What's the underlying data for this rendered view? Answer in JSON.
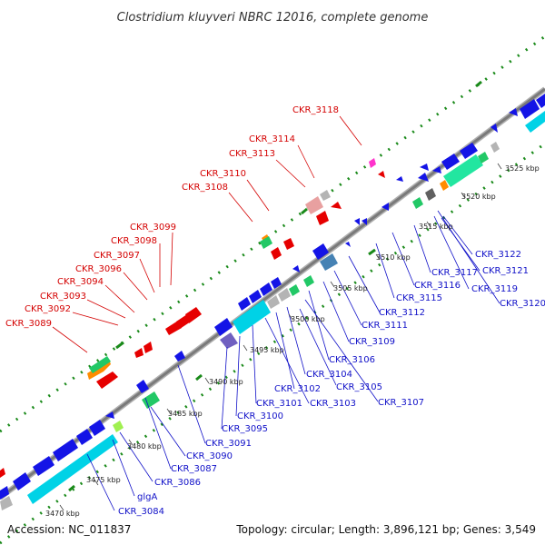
{
  "title": "Clostridium kluyveri NBRC 12016, complete genome",
  "footer": {
    "accession": "Accession: NC_011837",
    "summary": "Topology: circular; Length: 3,896,121 bp; Genes: 3,549"
  },
  "colors": {
    "backbone": "#808080",
    "forward_label": "#d40000",
    "reverse_label": "#1010c8",
    "gc_dots": "#1a8a1a",
    "blue_gene": "#1414e6",
    "cyan_gene": "#00d2e6",
    "green_gene": "#22c866",
    "orange_gene": "#ff8c00",
    "red_gene": "#e60000",
    "pink_gene": "#e8a0a0",
    "magenta_gene": "#ff33cc",
    "grey_gene": "#b4b4b4",
    "steel_gene": "#4682b4",
    "purple_gene": "#7060c0",
    "lime_gene": "#a0f050"
  },
  "ticks": [
    {
      "label": "3470 kbp"
    },
    {
      "label": "3475 kbp"
    },
    {
      "label": "3480 kbp"
    },
    {
      "label": "3485 kbp"
    },
    {
      "label": "3490 kbp"
    },
    {
      "label": "3495 kbp"
    },
    {
      "label": "3500 kbp"
    },
    {
      "label": "3505 kbp"
    },
    {
      "label": "3510 kbp"
    },
    {
      "label": "3515 kbp"
    },
    {
      "label": "3520 kbp"
    },
    {
      "label": "3525 kbp"
    }
  ],
  "forward_labels": [
    {
      "text": "CKR_3118"
    },
    {
      "text": "CKR_3114"
    },
    {
      "text": "CKR_3113"
    },
    {
      "text": "CKR_3110"
    },
    {
      "text": "CKR_3108"
    },
    {
      "text": "CKR_3099"
    },
    {
      "text": "CKR_3098"
    },
    {
      "text": "CKR_3097"
    },
    {
      "text": "CKR_3096"
    },
    {
      "text": "CKR_3094"
    },
    {
      "text": "CKR_3093"
    },
    {
      "text": "CKR_3092"
    },
    {
      "text": "CKR_3089"
    }
  ],
  "reverse_labels": [
    {
      "text": "CKR_3122"
    },
    {
      "text": "CKR_3121"
    },
    {
      "text": "CKR_3119"
    },
    {
      "text": "CKR_3120"
    },
    {
      "text": "CKR_3117"
    },
    {
      "text": "CKR_3116"
    },
    {
      "text": "CKR_3115"
    },
    {
      "text": "CKR_3112"
    },
    {
      "text": "CKR_3111"
    },
    {
      "text": "CKR_3109"
    },
    {
      "text": "CKR_3106"
    },
    {
      "text": "CKR_3105"
    },
    {
      "text": "CKR_3104"
    },
    {
      "text": "CKR_3107"
    },
    {
      "text": "CKR_3102"
    },
    {
      "text": "CKR_3103"
    },
    {
      "text": "CKR_3101"
    },
    {
      "text": "CKR_3100"
    },
    {
      "text": "CKR_3095"
    },
    {
      "text": "CKR_3091"
    },
    {
      "text": "CKR_3090"
    },
    {
      "text": "CKR_3087"
    },
    {
      "text": "CKR_3086"
    },
    {
      "text": "glgA"
    },
    {
      "text": "CKR_3084"
    }
  ]
}
